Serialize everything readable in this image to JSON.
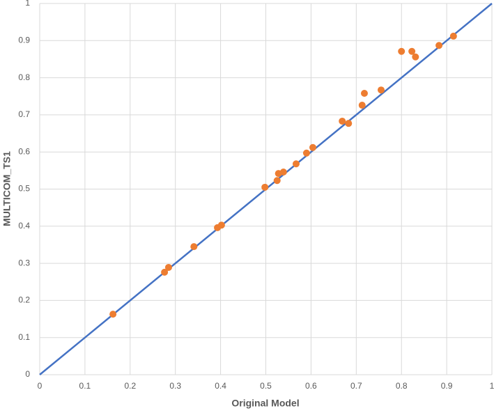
{
  "chart_data": {
    "type": "scatter",
    "xlabel": "Original Model",
    "ylabel": "MULTICOM_TS1",
    "xlim": [
      0,
      1
    ],
    "ylim": [
      0,
      1
    ],
    "xticks": [
      0,
      0.1,
      0.2,
      0.3,
      0.4,
      0.5,
      0.6,
      0.7,
      0.8,
      0.9,
      1
    ],
    "yticks": [
      0,
      0.1,
      0.2,
      0.3,
      0.4,
      0.5,
      0.6,
      0.7,
      0.8,
      0.9,
      1
    ],
    "grid": true,
    "series": [
      {
        "type": "line",
        "color": "#4472c4",
        "x": [
          0,
          1
        ],
        "values": [
          0,
          1
        ]
      },
      {
        "type": "scatter",
        "color": "#ed7d31",
        "x": [
          0.162,
          0.276,
          0.285,
          0.341,
          0.393,
          0.402,
          0.498,
          0.525,
          0.528,
          0.539,
          0.567,
          0.59,
          0.604,
          0.669,
          0.683,
          0.713,
          0.718,
          0.755,
          0.8,
          0.823,
          0.831,
          0.883,
          0.915
        ],
        "values": [
          0.163,
          0.276,
          0.289,
          0.345,
          0.396,
          0.403,
          0.505,
          0.523,
          0.542,
          0.546,
          0.568,
          0.597,
          0.612,
          0.683,
          0.677,
          0.726,
          0.758,
          0.767,
          0.871,
          0.871,
          0.856,
          0.887,
          0.912
        ]
      }
    ]
  }
}
